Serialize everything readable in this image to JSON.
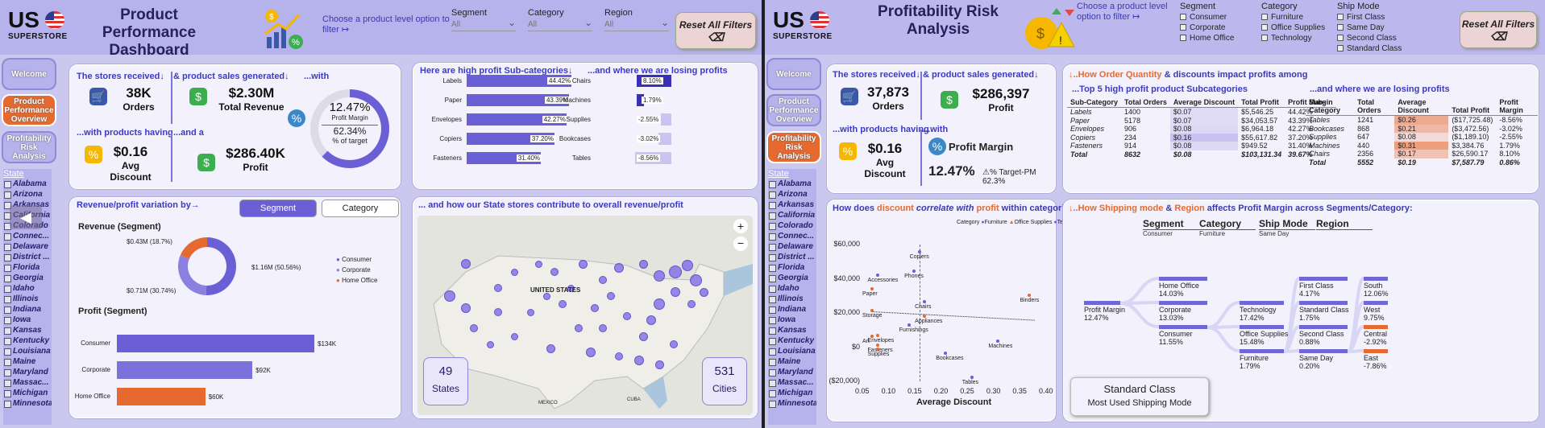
{
  "dashboard1": {
    "title": "Product Performance Dashboard",
    "logo": {
      "top": "US",
      "bottom": "SUPERSTORE"
    },
    "filter_hint": "Choose a product level option to filter ↦",
    "slicers": [
      {
        "label": "Segment",
        "value": "All"
      },
      {
        "label": "Category",
        "value": "All"
      },
      {
        "label": "Region",
        "value": "All"
      }
    ],
    "reset_label": "Reset All Filters",
    "nav": [
      "Welcome",
      "Product Performance Overview",
      "Profitability Risk Analysis"
    ],
    "state_header": "State",
    "states": [
      "Alabama",
      "Arizona",
      "Arkansas",
      "California",
      "Colorado",
      "Connec...",
      "Delaware",
      "District ...",
      "Florida",
      "Georgia",
      "Idaho",
      "Illinois",
      "Indiana",
      "Iowa",
      "Kansas",
      "Kentucky",
      "Louisiana",
      "Maine",
      "Maryland",
      "Massac...",
      "Michigan",
      "Minnesota"
    ],
    "kpi": {
      "stores_cap": "The stores received↓",
      "orders_val": "38K",
      "orders_lbl": "Orders",
      "sales_cap": "& product sales generated↓",
      "revenue_val": "$2.30M",
      "revenue_lbl": "Total Revenue",
      "with_cap": "...with",
      "discount_cap": "...with products having",
      "discount_val": "$0.16",
      "discount_lbl": "Avg Discount",
      "profit_cap": "...and a",
      "profit_val": "$286.40K",
      "profit_lbl": "Profit",
      "gauge_val": "12.47%",
      "gauge_lbl": "Profit Margin",
      "gauge_target": "62.34%",
      "gauge_target_lbl": "% of target"
    },
    "subcat": {
      "high_cap": "Here are high profit Sub-categories↓",
      "loss_cap": "...and where we are losing profits",
      "high": [
        {
          "name": "Labels",
          "pct": "44.42%",
          "v": 44.42
        },
        {
          "name": "Paper",
          "pct": "43.39%",
          "v": 43.39
        },
        {
          "name": "Envelopes",
          "pct": "42.27%",
          "v": 42.27
        },
        {
          "name": "Copiers",
          "pct": "37.20%",
          "v": 37.2
        },
        {
          "name": "Fasteners",
          "pct": "31.40%",
          "v": 31.4
        }
      ],
      "low": [
        {
          "name": "Chairs",
          "pct": "8.10%",
          "v": 8.1
        },
        {
          "name": "Machines",
          "pct": "1.79%",
          "v": 1.79
        },
        {
          "name": "Supplies",
          "pct": "-2.55%",
          "v": -2.55
        },
        {
          "name": "Bookcases",
          "pct": "-3.02%",
          "v": -3.02
        },
        {
          "name": "Tables",
          "pct": "-8.56%",
          "v": -8.56
        }
      ]
    },
    "variation": {
      "cap": "Revenue/profit variation by→",
      "btn_segment": "Segment",
      "btn_category": "Category",
      "rev_title": "Revenue (Segment)",
      "donut": [
        {
          "label": "$1.16M (50.56%)",
          "v": 50.56,
          "color": "#6b5fd6"
        },
        {
          "label": "$0.71M (30.74%)",
          "v": 30.74,
          "color": "#8a80e0"
        },
        {
          "label": "$0.43M (18.7%)",
          "v": 18.7,
          "color": "#e66a2f"
        }
      ],
      "legend": [
        "Consumer",
        "Corporate",
        "Home Office"
      ],
      "profit_title": "Profit (Segment)",
      "profit_bars": [
        {
          "name": "Consumer",
          "val": "$134K",
          "v": 134,
          "color": "#6b5fd6"
        },
        {
          "name": "Corporate",
          "val": "$92K",
          "v": 92,
          "color": "#7b71db"
        },
        {
          "name": "Home Office",
          "val": "$60K",
          "v": 60,
          "color": "#e66a2f"
        }
      ]
    },
    "map": {
      "cap": "... and how our State stores contribute to overall revenue/profit",
      "states_n": "49",
      "states_l": "States",
      "cities_n": "531",
      "cities_l": "Cities",
      "country": "UNITED STATES",
      "mexico": "MEXICO",
      "cuba": "CUBA"
    }
  },
  "dashboard2": {
    "title": "Profitability Risk Analysis",
    "logo": {
      "top": "US",
      "bottom": "SUPERSTORE"
    },
    "filter_hint": "Choose a product level option to filter ↦",
    "segment": {
      "label": "Segment",
      "options": [
        "Consumer",
        "Corporate",
        "Home Office"
      ]
    },
    "category": {
      "label": "Category",
      "options": [
        "Furniture",
        "Office Supplies",
        "Technology"
      ]
    },
    "shipmode": {
      "label": "Ship Mode",
      "options": [
        "First Class",
        "Same Day",
        "Second Class",
        "Standard Class"
      ]
    },
    "reset_label": "Reset All Filters",
    "nav": [
      "Welcome",
      "Product Performance Overview",
      "Profitability Risk Analysis"
    ],
    "state_header": "State",
    "states": [
      "Alabama",
      "Arizona",
      "Arkansas",
      "California",
      "Colorado",
      "Connec...",
      "Delaware",
      "District ...",
      "Florida",
      "Georgia",
      "Idaho",
      "Illinois",
      "Indiana",
      "Iowa",
      "Kansas",
      "Kentucky",
      "Louisiana",
      "Maine",
      "Maryland",
      "Massac...",
      "Michigan",
      "Minnesota"
    ],
    "kpi": {
      "stores_cap": "The stores received↓",
      "orders_val": "37,873",
      "orders_lbl": "Orders",
      "sales_cap": "& product sales generated↓",
      "profit_val": "$286,397",
      "profit_lbl": "Profit",
      "discount_cap": "...with products having",
      "discount_val": "$0.16",
      "discount_lbl": "Avg Discount",
      "with_cap": "...with",
      "margin_lbl": "Profit Margin",
      "margin_val": "12.47%",
      "target": "⚠% Target-PM 62.3%"
    },
    "tables": {
      "cap_prefix": "↓..How ",
      "cap_a": "Order Quantity",
      "cap_mid": " & discounts",
      "cap_end": " impact profits among",
      "top_cap": "...Top 5 high profit product Subcategories",
      "loss_cap": "...and where we are losing profits",
      "headers": [
        "Sub-Category",
        "Total Orders",
        "Average Discount",
        "Total Profit",
        "Profit Margin"
      ],
      "top": [
        [
          "Labels",
          "1400",
          "$0.07",
          "$5,546.25",
          "44.42%"
        ],
        [
          "Paper",
          "5178",
          "$0.07",
          "$34,053.57",
          "43.39%"
        ],
        [
          "Envelopes",
          "906",
          "$0.08",
          "$6,964.18",
          "42.27%"
        ],
        [
          "Copiers",
          "234",
          "$0.16",
          "$55,617.82",
          "37.20%"
        ],
        [
          "Fasteners",
          "914",
          "$0.08",
          "$949.52",
          "31.40%"
        ],
        [
          "Total",
          "8632",
          "$0.08",
          "$103,131.34",
          "39.67%"
        ]
      ],
      "loss": [
        [
          "Tables",
          "1241",
          "$0.26",
          "($17,725.48)",
          "-8.56%"
        ],
        [
          "Bookcases",
          "868",
          "$0.21",
          "($3,472.56)",
          "-3.02%"
        ],
        [
          "Supplies",
          "647",
          "$0.08",
          "($1,189.10)",
          "-2.55%"
        ],
        [
          "Machines",
          "440",
          "$0.31",
          "$3,384.76",
          "1.79%"
        ],
        [
          "Chairs",
          "2356",
          "$0.17",
          "$26,590.17",
          "8.10%"
        ],
        [
          "Total",
          "5552",
          "$0.19",
          "$7,587.79",
          "0.86%"
        ]
      ]
    },
    "scatter": {
      "cap_a": "How does ",
      "cap_b": "discount",
      "cap_c": " correlate with ",
      "cap_d": "profit",
      "cap_e": " within categories?",
      "legend_title": "Category",
      "legend": [
        {
          "name": "Furniture",
          "color": "#6b5fd6"
        },
        {
          "name": "Office Supplies",
          "color": "#e66a2f"
        },
        {
          "name": "Technology",
          "color": "#6b5fd6"
        }
      ],
      "xlabel": "Average Discount",
      "yticks": [
        "$60,000",
        "$40,000",
        "$20,000",
        "$0",
        "($20,000)"
      ],
      "xticks": [
        "0.05",
        "0.10",
        "0.15",
        "0.20",
        "0.25",
        "0.30",
        "0.35",
        "0.40"
      ],
      "points": [
        {
          "n": "Copiers",
          "x": 0.16,
          "y": 55618,
          "c": "#6b5fd6"
        },
        {
          "n": "Phones",
          "x": 0.15,
          "y": 44516,
          "c": "#6b5fd6"
        },
        {
          "n": "Accessories",
          "x": 0.08,
          "y": 41937,
          "c": "#6b5fd6"
        },
        {
          "n": "Paper",
          "x": 0.07,
          "y": 34054,
          "c": "#e66a2f"
        },
        {
          "n": "Binders",
          "x": 0.37,
          "y": 30222,
          "c": "#e66a2f"
        },
        {
          "n": "Chairs",
          "x": 0.17,
          "y": 26590,
          "c": "#6b5fd6"
        },
        {
          "n": "Storage",
          "x": 0.07,
          "y": 21279,
          "c": "#e66a2f"
        },
        {
          "n": "Appliances",
          "x": 0.17,
          "y": 18138,
          "c": "#e66a2f"
        },
        {
          "n": "Furnishings",
          "x": 0.14,
          "y": 13059,
          "c": "#6b5fd6"
        },
        {
          "n": "Envelopes",
          "x": 0.08,
          "y": 6964,
          "c": "#e66a2f"
        },
        {
          "n": "Art",
          "x": 0.07,
          "y": 6528,
          "c": "#e66a2f"
        },
        {
          "n": "Fasteners",
          "x": 0.08,
          "y": 950,
          "c": "#e66a2f"
        },
        {
          "n": "Supplies",
          "x": 0.08,
          "y": -1189,
          "c": "#e66a2f"
        },
        {
          "n": "Machines",
          "x": 0.31,
          "y": 3385,
          "c": "#6b5fd6"
        },
        {
          "n": "Bookcases",
          "x": 0.21,
          "y": -3473,
          "c": "#6b5fd6"
        },
        {
          "n": "Tables",
          "x": 0.26,
          "y": -17725,
          "c": "#6b5fd6"
        }
      ]
    },
    "flow": {
      "cap_a": "↓..How ",
      "cap_b": "Shipping mode",
      "cap_c": " & ",
      "cap_d": "Region",
      "cap_e": " affects Profit Margin across Segments/Category:",
      "cols": [
        {
          "h": "Segment",
          "s": "Consumer"
        },
        {
          "h": "Category",
          "s": "Furniture"
        },
        {
          "h": "Ship Mode",
          "s": "Same Day"
        },
        {
          "h": "Region",
          "s": ""
        }
      ],
      "root": [
        "Profit Margin",
        "12.47%"
      ],
      "segment": [
        [
          "Home Office",
          "14.03%"
        ],
        [
          "Corporate",
          "13.03%"
        ],
        [
          "Consumer",
          "11.55%"
        ]
      ],
      "cat": [
        [
          "Technology",
          "17.42%"
        ],
        [
          "Office Supplies",
          "15.48%"
        ],
        [
          "Furniture",
          "1.79%"
        ]
      ],
      "ship": [
        [
          "First Class",
          "4.17%"
        ],
        [
          "Standard Class",
          "1.75%"
        ],
        [
          "Second Class",
          "0.88%"
        ],
        [
          "Same Day",
          "0.20%"
        ]
      ],
      "region": [
        [
          "South",
          "12.06%"
        ],
        [
          "West",
          "9.75%"
        ],
        [
          "Central",
          "-2.92%"
        ],
        [
          "East",
          "-7.86%"
        ]
      ],
      "callout_val": "Standard Class",
      "callout_lbl": "Most Used Shipping Mode"
    }
  }
}
